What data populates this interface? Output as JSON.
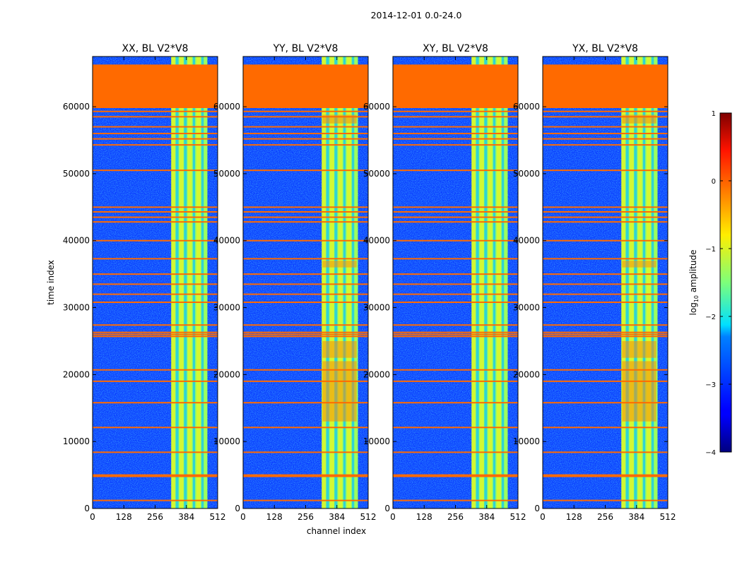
{
  "suptitle": "2014-12-01 0.0-24.0",
  "chart_data": {
    "type": "heatmap",
    "xlabel": "channel index",
    "ylabel": "time index",
    "xlim": [
      0,
      512
    ],
    "ylim": [
      0,
      67500
    ],
    "xticks": [
      0,
      128,
      256,
      384,
      512
    ],
    "yticks": [
      0,
      10000,
      20000,
      30000,
      40000,
      50000,
      60000
    ],
    "colorbar": {
      "label": "log10 amplitude",
      "label_main": "log",
      "label_sub": "10",
      "label_rest": " amplitude",
      "ticks": [
        1,
        0,
        -1,
        -2,
        -3,
        -4
      ],
      "range": [
        -4,
        1
      ],
      "colormap": "jet"
    },
    "colors": {
      "flagged": "#ff6a00",
      "background_low": "#0a3cff"
    },
    "flagged_block": {
      "time_from": 59800,
      "time_to": 66300,
      "value": 0
    },
    "flag_lines": [
      1200,
      4800,
      5000,
      8400,
      12100,
      15800,
      19000,
      20700,
      25700,
      26000,
      26300,
      27400,
      30800,
      32000,
      33500,
      35000,
      37300,
      40000,
      42800,
      43500,
      44300,
      45000,
      50500,
      54300,
      55200,
      56000,
      57000,
      58500,
      59300
    ],
    "panels": [
      {
        "title": "XX, BL V2*V8",
        "product": "XX"
      },
      {
        "title": "YY, BL V2*V8",
        "product": "YY"
      },
      {
        "title": "XY, BL V2*V8",
        "product": "XY"
      },
      {
        "title": "YX, BL V2*V8",
        "product": "YX"
      }
    ]
  }
}
